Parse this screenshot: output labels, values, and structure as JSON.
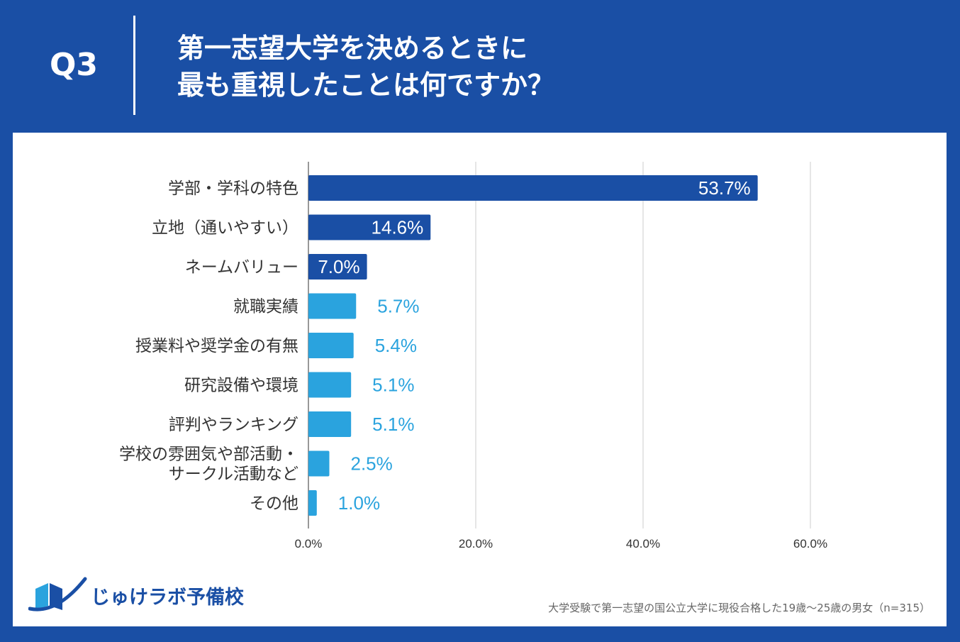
{
  "header": {
    "q_label": "Q3",
    "title_line1": "第一志望大学を決めるときに",
    "title_line2": "最も重視したことは何ですか？"
  },
  "colors": {
    "header_bg": "#1a4fa5",
    "bar_dark": "#1a4fa5",
    "bar_light": "#2aa3de",
    "grid": "#cccccc"
  },
  "chart_data": {
    "type": "bar",
    "orientation": "horizontal",
    "categories": [
      "学部・学科の特色",
      "立地（通いやすい）",
      "ネームバリュー",
      "就職実績",
      "授業料や奨学金の有無",
      "研究設備や環境",
      "評判やランキング",
      "学校の雰囲気や部活動・\nサークル活動など",
      "その他"
    ],
    "values": [
      53.7,
      14.6,
      7.0,
      5.7,
      5.4,
      5.1,
      5.1,
      2.5,
      1.0
    ],
    "value_labels": [
      "53.7%",
      "14.6%",
      "7.0%",
      "5.7%",
      "5.4%",
      "5.1%",
      "5.1%",
      "2.5%",
      "1.0%"
    ],
    "highlight_top": 3,
    "xlim": [
      0,
      60
    ],
    "x_ticks": [
      0,
      20,
      40,
      60
    ],
    "x_tick_labels": [
      "0.0%",
      "20.0%",
      "40.0%",
      "60.0%"
    ],
    "grid": true
  },
  "logo": {
    "text": "じゅけラボ予備校",
    "icon": "open-book-swoosh-icon"
  },
  "footnote": "大学受験で第一志望の国公立大学に現役合格した19歳～25歳の男女（n=315）"
}
